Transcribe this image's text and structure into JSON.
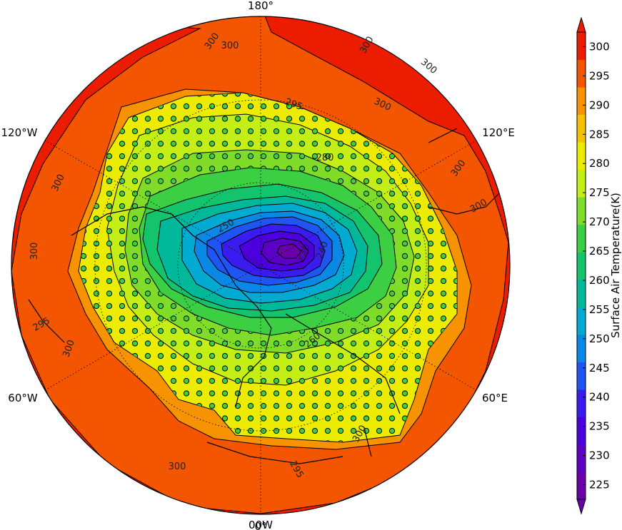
{
  "chart_data": {
    "type": "heatmap",
    "projection": "north-polar-stereographic",
    "title": "",
    "variable": "Surface Air Temperature",
    "units": "K",
    "colorbar": {
      "label": "Surface Air Temperature(K)",
      "ticks": [
        225,
        230,
        235,
        240,
        245,
        250,
        255,
        260,
        265,
        270,
        275,
        280,
        285,
        290,
        295,
        300
      ],
      "range": [
        222.5,
        302.5
      ],
      "extend": "both",
      "colors": [
        "#6a00a8",
        "#5b00c4",
        "#4b00dc",
        "#3a1cf0",
        "#1f55f2",
        "#0a88e6",
        "#00aad0",
        "#00b89a",
        "#14c46c",
        "#3ccf44",
        "#7fdd2a",
        "#c3ee16",
        "#ecec00",
        "#f5c200",
        "#f79200",
        "#f45500",
        "#ec1c00"
      ]
    },
    "meridian_labels": [
      "180°",
      "120°E",
      "60°E",
      "0°",
      "60°W",
      "120°W"
    ],
    "bottom_label": "00W",
    "contour_labels": [
      "300",
      "300",
      "300",
      "300",
      "300",
      "295",
      "280",
      "300",
      "300",
      "300",
      "300",
      "300",
      "300",
      "295",
      "295",
      "300",
      "250",
      "230",
      "240",
      "260"
    ],
    "stipple_note": "circles mark stippled grid points"
  }
}
